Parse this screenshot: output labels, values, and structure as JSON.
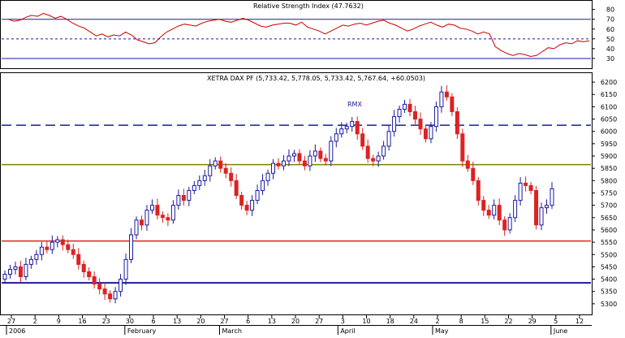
{
  "chart_data": [
    {
      "type": "line",
      "title": "Relative Strength Index (47.7632)",
      "ylim": [
        20,
        88
      ],
      "y_ticks": [
        30,
        40,
        50,
        60,
        70,
        80
      ],
      "reference_lines": [
        {
          "value": 70,
          "style": "solid",
          "color": "#1a1aa0"
        },
        {
          "value": 50,
          "style": "dashed",
          "color": "#1a1aa0"
        },
        {
          "value": 30,
          "style": "solid",
          "color": "#1a1aa0"
        }
      ],
      "rsi_values": [
        70,
        68,
        69,
        72,
        74,
        73,
        76,
        74,
        71,
        73,
        70,
        66,
        63,
        61,
        57,
        53,
        55,
        52,
        54,
        53,
        57,
        54,
        49,
        47,
        45,
        46,
        52,
        57,
        60,
        63,
        65,
        64,
        63,
        66,
        68,
        69,
        70,
        68,
        67,
        69,
        71,
        69,
        66,
        63,
        62,
        64,
        65,
        66,
        66,
        64,
        67,
        62,
        60,
        58,
        55,
        58,
        61,
        64,
        63,
        65,
        66,
        64,
        66,
        68,
        69,
        66,
        64,
        61,
        58,
        60,
        63,
        65,
        67,
        64,
        62,
        65,
        64,
        61,
        60,
        58,
        55,
        57,
        55,
        42,
        38,
        35,
        33,
        35,
        34,
        32,
        33,
        37,
        41,
        40,
        44,
        46,
        45,
        48,
        47,
        48
      ],
      "series_color": "#cc0000"
    },
    {
      "type": "candlestick",
      "title": "XETRA DAX PF (5,733.42, 5,778.05, 5,733.42, 5,767.64, +60.0503)",
      "annotation": "RMX",
      "ylim": [
        5260,
        6230
      ],
      "y_ticks": [
        5300,
        5350,
        5400,
        5450,
        5500,
        5550,
        5600,
        5650,
        5700,
        5750,
        5800,
        5850,
        5900,
        5950,
        6000,
        6050,
        6100,
        6150,
        6200
      ],
      "x_tick_labels": [
        "27",
        "2",
        "9",
        "16",
        "23",
        "30",
        "6",
        "13",
        "20",
        "27",
        "6",
        "13",
        "20",
        "27",
        "3",
        "10",
        "18",
        "24",
        "2",
        "8",
        "15",
        "22",
        "29",
        "5",
        "12"
      ],
      "month_labels": [
        "2006",
        "February",
        "March",
        "April",
        "May",
        "June"
      ],
      "closes": [
        5420,
        5440,
        5450,
        5410,
        5460,
        5480,
        5500,
        5530,
        5520,
        5550,
        5560,
        5540,
        5520,
        5500,
        5460,
        5430,
        5410,
        5380,
        5360,
        5340,
        5320,
        5350,
        5400,
        5480,
        5580,
        5640,
        5620,
        5680,
        5700,
        5660,
        5650,
        5640,
        5700,
        5740,
        5720,
        5760,
        5780,
        5800,
        5820,
        5860,
        5880,
        5850,
        5830,
        5800,
        5740,
        5700,
        5680,
        5720,
        5760,
        5800,
        5830,
        5870,
        5860,
        5880,
        5900,
        5910,
        5880,
        5860,
        5900,
        5920,
        5890,
        5880,
        5960,
        5990,
        6010,
        6020,
        6040,
        5990,
        5940,
        5890,
        5880,
        5900,
        5940,
        6000,
        6060,
        6090,
        6110,
        6080,
        6050,
        6010,
        5970,
        6020,
        6100,
        6160,
        6140,
        6080,
        5990,
        5880,
        5850,
        5800,
        5720,
        5680,
        5660,
        5700,
        5640,
        5600,
        5650,
        5720,
        5790,
        5780,
        5760,
        5620,
        5690,
        5700,
        5767
      ],
      "horizontal_lines": [
        {
          "value": 6025,
          "style": "dashed",
          "color": "#1a1aa0"
        },
        {
          "value": 5865,
          "style": "solid",
          "color": "#808000"
        },
        {
          "value": 5555,
          "style": "solid",
          "color": "#dd2222"
        },
        {
          "value": 5385,
          "style": "solid",
          "color": "#1a1aa0"
        }
      ]
    }
  ]
}
